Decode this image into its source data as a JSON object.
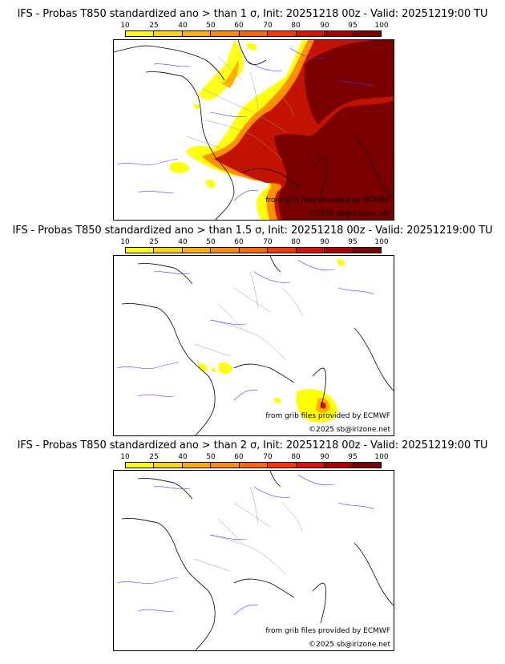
{
  "palette": [
    "#ffff00",
    "#ffd700",
    "#ffb000",
    "#ff8c00",
    "#ff6600",
    "#ff3300",
    "#e01000",
    "#b00000",
    "#800000",
    "#4a0000"
  ],
  "colorbar_ticks": [
    "10",
    "25",
    "40",
    "50",
    "60",
    "70",
    "80",
    "90",
    "95",
    "100"
  ],
  "credits": {
    "grib": "from grib files provided by ECMWF",
    "copyright": "©2025 sb@irizone.net"
  },
  "panels": [
    {
      "title": "IFS - Probas T850  standardized ano > than 1 σ, Init: 20251218 00z - Valid: 20251219:00 TU"
    },
    {
      "title": "IFS - Probas T850  standardized ano > than 1.5 σ, Init: 20251218 00z - Valid: 20251219:00 TU"
    },
    {
      "title": "IFS - Probas T850  standardized ano > than 2 σ, Init: 20251218 00z - Valid: 20251219:00 TU"
    }
  ]
}
